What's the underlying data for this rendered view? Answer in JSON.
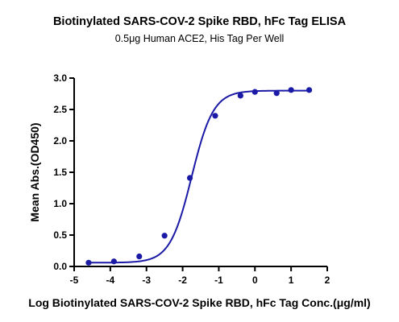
{
  "chart_data": {
    "type": "scatter",
    "title": "Biotinylated SARS-COV-2 Spike RBD, hFc Tag ELISA",
    "subtitle": "0.5μg Human ACE2, His Tag Per Well",
    "xlabel": "Log Biotinylated SARS-COV-2 Spike RBD, hFc Tag Conc.(μg/ml)",
    "ylabel": "Mean Abs.(OD450)",
    "xlim": [
      -5,
      2
    ],
    "ylim": [
      0,
      3.0
    ],
    "x_ticks": [
      "-5",
      "-4",
      "-3",
      "-2",
      "-1",
      "0",
      "1",
      "2"
    ],
    "y_ticks": [
      "0.0",
      "0.5",
      "1.0",
      "1.5",
      "2.0",
      "2.5",
      "3.0"
    ],
    "grid": false,
    "color": "#1a1aa6",
    "series": [
      {
        "points": [
          {
            "x": -4.6,
            "y": 0.06
          },
          {
            "x": -3.9,
            "y": 0.08
          },
          {
            "x": -3.2,
            "y": 0.16
          },
          {
            "x": -2.5,
            "y": 0.49
          },
          {
            "x": -1.8,
            "y": 1.41
          },
          {
            "x": -1.1,
            "y": 2.4
          },
          {
            "x": -0.4,
            "y": 2.72
          },
          {
            "x": 0.0,
            "y": 2.78
          },
          {
            "x": 0.6,
            "y": 2.76
          },
          {
            "x": 1.0,
            "y": 2.81
          },
          {
            "x": 1.5,
            "y": 2.81
          }
        ]
      }
    ],
    "fit_curve": {
      "model": "4PL",
      "bottom": 0.06,
      "top": 2.8,
      "log_ec50": -1.75,
      "hill_slope": 1.45
    }
  }
}
